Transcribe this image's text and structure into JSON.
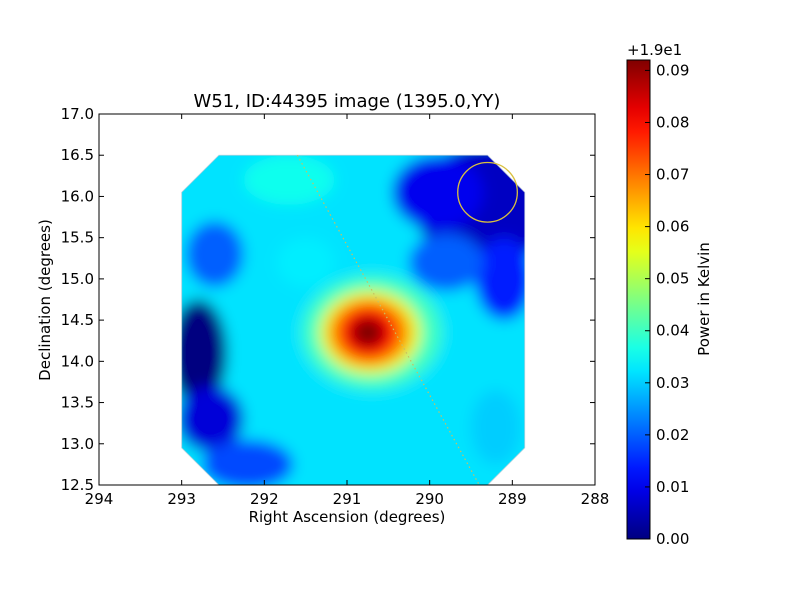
{
  "chart_data": {
    "type": "heatmap",
    "title": "W51, ID:44395 image (1395.0,YY)",
    "xlabel": "Right Ascension (degrees)",
    "ylabel": "Declination (degrees)",
    "xlim": [
      294,
      288
    ],
    "ylim": [
      12.5,
      17.0
    ],
    "x_ticks": [
      "294",
      "293",
      "292",
      "291",
      "290",
      "289",
      "288"
    ],
    "y_ticks": [
      "12.5",
      "13.0",
      "13.5",
      "14.0",
      "14.5",
      "15.0",
      "15.5",
      "16.0",
      "16.5",
      "17.0"
    ],
    "grid": false,
    "map_extent": {
      "ra": [
        293.0,
        288.85
      ],
      "dec": [
        12.5,
        16.5
      ],
      "corner_cut_deg": 0.45
    },
    "peak": {
      "ra": 290.75,
      "dec": 14.35,
      "value": 0.092
    },
    "circle": {
      "ra": 289.3,
      "dec": 16.05,
      "radius_deg": 0.36,
      "color": "#d9c040"
    },
    "dotted_line": {
      "from": [
        291.6,
        16.5
      ],
      "to": [
        289.4,
        12.5
      ],
      "color": "#c8c060"
    },
    "colorbar": {
      "label": "Power in Kelvin",
      "offset_label": "+1.9e1",
      "range": [
        0.0,
        0.092
      ],
      "ticks": [
        "0.00",
        "0.01",
        "0.02",
        "0.03",
        "0.04",
        "0.05",
        "0.06",
        "0.07",
        "0.08",
        "0.09"
      ],
      "colormap": "jet"
    }
  }
}
